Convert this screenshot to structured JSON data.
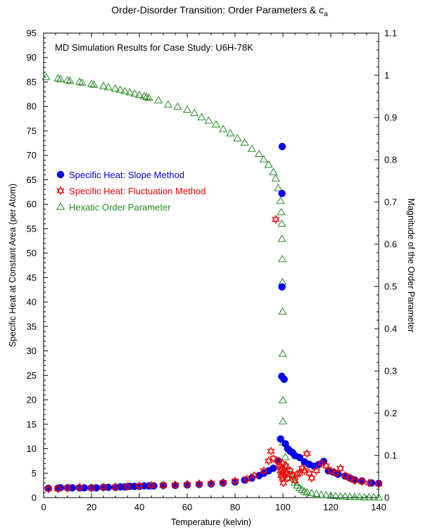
{
  "chart_data": {
    "type": "scatter",
    "title": "Order-Disorder Transition: Order Parameters & ",
    "title_italic": "c",
    "title_sub": "a",
    "annotation": "MD Simulation Results for Case Study: U6H-78K",
    "xlabel": "Temperature (kelvin)",
    "ylabel": "Specific Heat at Constant Area (per Atom)",
    "y2label": "Magnitude of the Order Parameter",
    "xlim": [
      0,
      140
    ],
    "ylim": [
      0,
      95
    ],
    "y2lim": [
      0,
      1.1
    ],
    "xticks": [
      "0",
      "20",
      "40",
      "60",
      "80",
      "100",
      "120",
      "140"
    ],
    "yticks": [
      "0",
      "5",
      "10",
      "15",
      "20",
      "25",
      "30",
      "35",
      "40",
      "45",
      "50",
      "55",
      "60",
      "65",
      "70",
      "75",
      "80",
      "85",
      "90",
      "95"
    ],
    "y2ticks": [
      "0",
      "0.1",
      "0.2",
      "0.3",
      "0.4",
      "0.5",
      "0.6",
      "0.7",
      "0.8",
      "0.9",
      "1",
      "1.1"
    ],
    "legend_position": "left",
    "series": [
      {
        "name": "Specific Heat: Slope Method",
        "axis": "left",
        "marker": "filled-circle",
        "color": "#0000ee",
        "points": [
          [
            2,
            1.9
          ],
          [
            6,
            1.9
          ],
          [
            7,
            2.0
          ],
          [
            10,
            2.0
          ],
          [
            12,
            2.0
          ],
          [
            15,
            2.0
          ],
          [
            17,
            2.0
          ],
          [
            20,
            2.0
          ],
          [
            22,
            2.0
          ],
          [
            25,
            2.1
          ],
          [
            27,
            2.1
          ],
          [
            30,
            2.1
          ],
          [
            32,
            2.2
          ],
          [
            34,
            2.2
          ],
          [
            36,
            2.3
          ],
          [
            38,
            2.3
          ],
          [
            40,
            2.3
          ],
          [
            42,
            2.4
          ],
          [
            44,
            2.4
          ],
          [
            46,
            2.4
          ],
          [
            50,
            2.5
          ],
          [
            55,
            2.5
          ],
          [
            60,
            2.6
          ],
          [
            65,
            2.7
          ],
          [
            70,
            2.8
          ],
          [
            75,
            3.0
          ],
          [
            80,
            3.2
          ],
          [
            84,
            3.6
          ],
          [
            87,
            4.0
          ],
          [
            90,
            4.5
          ],
          [
            92,
            5.0
          ],
          [
            94,
            5.5
          ],
          [
            96,
            6.0
          ],
          [
            98,
            7.5
          ],
          [
            99,
            12.0
          ],
          [
            99.5,
            24.8
          ],
          [
            99.6,
            43.1
          ],
          [
            99.6,
            62.2
          ],
          [
            99.7,
            71.8
          ],
          [
            100.5,
            24.2
          ],
          [
            101,
            11.0
          ],
          [
            102,
            10.0
          ],
          [
            103,
            9.5
          ],
          [
            104,
            9.2
          ],
          [
            105,
            8.6
          ],
          [
            107,
            8.2
          ],
          [
            109,
            7.3
          ],
          [
            111,
            6.8
          ],
          [
            113,
            6.4
          ],
          [
            115,
            6.8
          ],
          [
            117,
            7.4
          ],
          [
            119,
            5.5
          ],
          [
            121,
            5.2
          ],
          [
            123,
            4.8
          ],
          [
            126,
            4.4
          ],
          [
            128,
            4.0
          ],
          [
            130,
            3.6
          ],
          [
            133,
            3.4
          ],
          [
            137,
            3.0
          ],
          [
            140,
            2.9
          ]
        ]
      },
      {
        "name": "Specific Heat: Fluctuation Method",
        "axis": "left",
        "marker": "hollow-star",
        "color": "#ee0000",
        "points": [
          [
            2,
            1.8
          ],
          [
            6,
            1.8
          ],
          [
            10,
            2.0
          ],
          [
            15,
            2.1
          ],
          [
            20,
            2.0
          ],
          [
            25,
            2.1
          ],
          [
            30,
            2.2
          ],
          [
            35,
            2.3
          ],
          [
            40,
            2.4
          ],
          [
            45,
            2.5
          ],
          [
            50,
            2.5
          ],
          [
            55,
            2.6
          ],
          [
            60,
            2.7
          ],
          [
            65,
            2.8
          ],
          [
            70,
            2.9
          ],
          [
            75,
            3.1
          ],
          [
            80,
            3.4
          ],
          [
            85,
            3.8
          ],
          [
            88,
            4.5
          ],
          [
            92,
            5.5
          ],
          [
            94,
            7.5
          ],
          [
            95,
            9.5
          ],
          [
            96,
            8.0
          ],
          [
            97,
            56.9
          ],
          [
            98,
            7.5
          ],
          [
            98.5,
            6.5
          ],
          [
            99,
            5.5
          ],
          [
            99.3,
            4.5
          ],
          [
            99.5,
            6.0
          ],
          [
            99.7,
            7.0
          ],
          [
            99.8,
            4.0
          ],
          [
            100,
            5.0
          ],
          [
            100.2,
            3.0
          ],
          [
            100.5,
            4.5
          ],
          [
            101,
            6.5
          ],
          [
            101.5,
            5.0
          ],
          [
            102,
            4.0
          ],
          [
            103,
            5.5
          ],
          [
            104,
            4.5
          ],
          [
            105,
            3.5
          ],
          [
            106,
            4.8
          ],
          [
            107,
            5.0
          ],
          [
            108,
            6.0
          ],
          [
            109,
            5.5
          ],
          [
            110,
            9.0
          ],
          [
            111,
            5.0
          ],
          [
            112,
            4.0
          ],
          [
            114,
            5.5
          ],
          [
            116,
            7.0
          ],
          [
            118,
            6.5
          ],
          [
            120,
            5.5
          ],
          [
            122,
            5.0
          ],
          [
            124,
            6.0
          ],
          [
            126,
            4.5
          ],
          [
            128,
            4.0
          ],
          [
            130,
            3.5
          ],
          [
            133,
            3.3
          ],
          [
            136,
            3.0
          ],
          [
            140,
            2.8
          ]
        ]
      },
      {
        "name": "Hexatic Order Parameter",
        "axis": "right",
        "marker": "hollow-triangle",
        "color": "#228b22",
        "points": [
          [
            1,
            0.995
          ],
          [
            6,
            0.992
          ],
          [
            7,
            0.99
          ],
          [
            10,
            0.988
          ],
          [
            11,
            0.986
          ],
          [
            15,
            0.984
          ],
          [
            16,
            0.982
          ],
          [
            20,
            0.979
          ],
          [
            21,
            0.977
          ],
          [
            25,
            0.974
          ],
          [
            27,
            0.971
          ],
          [
            30,
            0.968
          ],
          [
            32,
            0.965
          ],
          [
            34,
            0.962
          ],
          [
            36,
            0.959
          ],
          [
            38,
            0.956
          ],
          [
            40,
            0.953
          ],
          [
            42,
            0.95
          ],
          [
            43,
            0.948
          ],
          [
            44,
            0.946
          ],
          [
            48,
            0.94
          ],
          [
            52,
            0.93
          ],
          [
            56,
            0.925
          ],
          [
            60,
            0.918
          ],
          [
            63,
            0.91
          ],
          [
            66,
            0.9
          ],
          [
            69,
            0.892
          ],
          [
            72,
            0.883
          ],
          [
            75,
            0.872
          ],
          [
            78,
            0.862
          ],
          [
            81,
            0.85
          ],
          [
            84,
            0.84
          ],
          [
            87,
            0.825
          ],
          [
            90,
            0.813
          ],
          [
            92,
            0.8
          ],
          [
            94,
            0.788
          ],
          [
            96,
            0.77
          ],
          [
            97,
            0.755
          ],
          [
            98,
            0.732
          ],
          [
            99,
            0.702
          ],
          [
            99.3,
            0.675
          ],
          [
            99.5,
            0.648
          ],
          [
            99.6,
            0.612
          ],
          [
            99.7,
            0.564
          ],
          [
            99.8,
            0.51
          ],
          [
            99.85,
            0.44
          ],
          [
            99.9,
            0.34
          ],
          [
            99.95,
            0.23
          ],
          [
            100,
            0.18
          ],
          [
            100.1,
            0.13
          ],
          [
            101,
            0.095
          ],
          [
            101.5,
            0.075
          ],
          [
            102,
            0.065
          ],
          [
            103,
            0.055
          ],
          [
            104,
            0.045
          ],
          [
            105,
            0.035
          ],
          [
            106,
            0.028
          ],
          [
            107,
            0.022
          ],
          [
            108,
            0.018
          ],
          [
            109,
            0.014
          ],
          [
            110,
            0.012
          ],
          [
            112,
            0.01
          ],
          [
            114,
            0.008
          ],
          [
            116,
            0.006
          ],
          [
            118,
            0.005
          ],
          [
            120,
            0.004
          ],
          [
            122,
            0.003
          ],
          [
            124,
            0.002
          ],
          [
            126,
            0.002
          ],
          [
            128,
            0.001
          ],
          [
            130,
            0.001
          ],
          [
            132,
            0.001
          ],
          [
            134,
            0.0
          ],
          [
            136,
            0.0
          ],
          [
            138,
            0.0
          ],
          [
            140,
            0.0
          ]
        ]
      }
    ]
  }
}
